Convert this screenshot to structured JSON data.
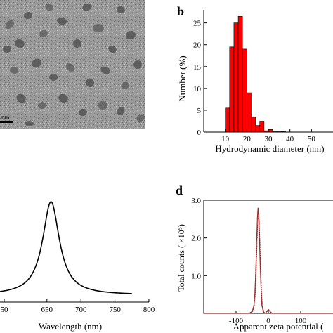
{
  "panels": {
    "a": {
      "scale_text": "nm"
    },
    "b": {
      "letter": "b",
      "xlabel": "Hydrodynamic diameter (nm)",
      "ylabel": "Number (%)"
    },
    "c": {
      "xlabel": "Wavelength (nm)"
    },
    "d": {
      "letter": "d",
      "xlabel": "Apparent zeta potential (",
      "ylabel": "Total counts (  ×10⁵)"
    }
  },
  "colors": {
    "histogram_bar": "#ff0000",
    "zeta_curve": "#a52a2a",
    "spectrum_line": "#000000"
  },
  "chart_data": [
    {
      "panel": "b",
      "type": "bar",
      "x_bin_starts": [
        10,
        12,
        14,
        16,
        18,
        20,
        22,
        24,
        26,
        28,
        30,
        32,
        34,
        36
      ],
      "bin_width": 2,
      "values": [
        5.5,
        19.5,
        25,
        26.5,
        19,
        9,
        3.5,
        1.5,
        2.5,
        0.3,
        0.6,
        0.2,
        0.2,
        0.1
      ],
      "xlim": [
        0,
        60
      ],
      "ylim": [
        0,
        28
      ],
      "xticks": [
        10,
        20,
        30,
        40,
        50
      ],
      "yticks": [
        0,
        5,
        10,
        15,
        20,
        25
      ]
    },
    {
      "panel": "c",
      "type": "line",
      "peak_x": 656,
      "peak_width": 30,
      "xlim": [
        550,
        800
      ],
      "xticks": [
        650,
        700,
        750,
        800
      ],
      "xtick_labels": [
        "650",
        "700",
        "750",
        "800"
      ]
    },
    {
      "panel": "d",
      "type": "line",
      "x": [
        -200,
        -60,
        -50,
        -45,
        -42,
        -40,
        -38,
        -36,
        -34,
        -32,
        -30,
        -28,
        -26,
        -24,
        -22,
        -20,
        -15,
        -10,
        -5,
        0,
        5,
        10,
        50,
        100,
        200
      ],
      "y": [
        0,
        0,
        0.05,
        0.2,
        0.5,
        0.9,
        1.4,
        2.0,
        2.55,
        2.8,
        2.6,
        2.1,
        1.5,
        0.95,
        0.5,
        0.2,
        0.03,
        0,
        0.05,
        0.1,
        0.05,
        0,
        0,
        0,
        0
      ],
      "xlim": [
        -200,
        200
      ],
      "ylim": [
        0,
        3.0
      ],
      "xticks": [
        -100,
        0,
        100
      ],
      "xtick_labels": [
        "-100",
        "0",
        "100"
      ],
      "yticks": [
        1.0,
        2.0,
        3.0
      ],
      "ytick_labels": [
        "1.0",
        "2.0",
        "3.0"
      ]
    }
  ]
}
